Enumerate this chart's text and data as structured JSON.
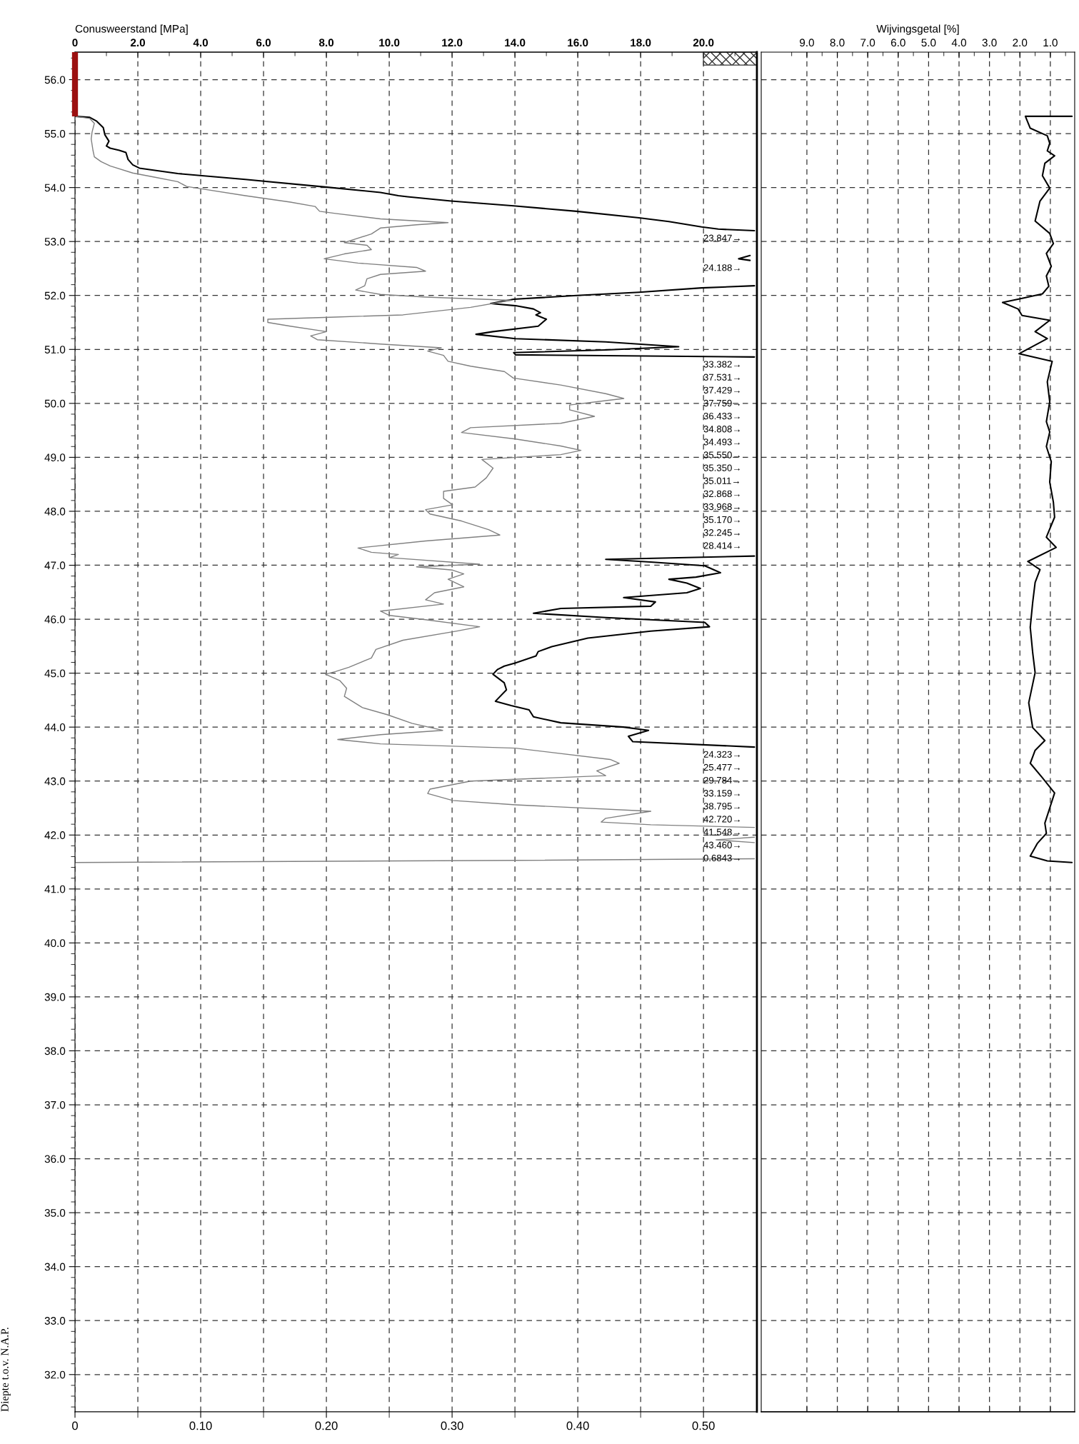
{
  "chart_data": [
    {
      "type": "line",
      "ylabel": "Diepte t.o.v. N.A.P.",
      "x2label": "Conusweerstand [MPa]",
      "xlim": [
        0,
        0.5425
      ],
      "xticks": [
        0,
        {
          "value": 0.05,
          "label": null
        },
        {
          "value": 0.1,
          "label": "0.10"
        },
        {
          "value": 0.15,
          "label": null
        },
        {
          "value": 0.2,
          "label": "0.20"
        },
        {
          "value": 0.25,
          "label": null
        },
        {
          "value": 0.3,
          "label": "0.30"
        },
        {
          "value": 0.35,
          "label": null
        },
        {
          "value": 0.4,
          "label": "0.40"
        },
        {
          "value": 0.45,
          "label": null
        },
        {
          "value": 0.5,
          "label": "0.50"
        }
      ],
      "x2lim": [
        0,
        21.7
      ],
      "x2ticks": [
        0,
        {
          "value": 1,
          "label": null
        },
        {
          "value": 2,
          "label": "2.0"
        },
        {
          "value": 3,
          "label": null
        },
        {
          "value": 4,
          "label": "4.0"
        },
        {
          "value": 5,
          "label": null
        },
        {
          "value": 6,
          "label": "6.0"
        },
        {
          "value": 7,
          "label": null
        },
        {
          "value": 8,
          "label": "8.0"
        },
        {
          "value": 9,
          "label": null
        },
        {
          "value": 10,
          "label": "10.0"
        },
        {
          "value": 11,
          "label": null
        },
        {
          "value": 12,
          "label": "12.0"
        },
        {
          "value": 13,
          "label": null
        },
        {
          "value": 14,
          "label": "14.0"
        },
        {
          "value": 15,
          "label": null
        },
        {
          "value": 16,
          "label": "16.0"
        },
        {
          "value": 17,
          "label": null
        },
        {
          "value": 18,
          "label": "18.0"
        },
        {
          "value": 19,
          "label": null
        },
        {
          "value": 20,
          "label": "20.0"
        },
        {
          "value": 21,
          "label": null
        }
      ],
      "ylim": [
        31.31,
        56.51
      ],
      "yticks": [
        {
          "value": 56,
          "label": "56.0"
        },
        {
          "value": 55,
          "label": "55.0"
        },
        {
          "value": 54,
          "label": "54.0"
        },
        {
          "value": 53,
          "label": "53.0"
        },
        {
          "value": 52,
          "label": "52.0"
        },
        {
          "value": 51,
          "label": "51.0"
        },
        {
          "value": 50,
          "label": "50.0"
        },
        {
          "value": 49,
          "label": "49.0"
        },
        {
          "value": 48,
          "label": "48.0"
        },
        {
          "value": 47,
          "label": "47.0"
        },
        {
          "value": 46,
          "label": "46.0"
        },
        {
          "value": 45,
          "label": "45.0"
        },
        {
          "value": 44,
          "label": "44.0"
        },
        {
          "value": 43,
          "label": "43.0"
        },
        {
          "value": 42,
          "label": "42.0"
        },
        {
          "value": 41,
          "label": "41.0"
        },
        {
          "value": 40,
          "label": "40.0"
        },
        {
          "value": 39,
          "label": "39.0"
        },
        {
          "value": 38,
          "label": "38.0"
        },
        {
          "value": 37,
          "label": "37.0"
        },
        {
          "value": 36,
          "label": "36.0"
        },
        {
          "value": 35,
          "label": "35.0"
        },
        {
          "value": 34,
          "label": "34.0"
        },
        {
          "value": 33,
          "label": "33.0"
        },
        {
          "value": 32,
          "label": "32.0"
        }
      ],
      "grid": true,
      "series": [
        {
          "color": "#9b1010",
          "x": [
            0,
            0
          ],
          "values": [
            55.32,
            56.51
          ]
        },
        {
          "color": "#000000",
          "axis": "x2",
          "x": [
            0,
            0.47,
            0.69,
            0.9,
            0.95,
            1.08,
            1.0,
            1.12,
            1.41,
            1.62,
            1.69,
            1.84,
            2.05,
            3.27,
            5.42,
            7.97,
            9.72,
            10.29,
            10.58,
            11.97,
            13.96,
            15.96,
            17.95,
            18.9,
            19.94,
            20.47,
            21.62,
            null,
            21.48,
            21.12,
            21.48,
            null,
            21.62,
            19.94,
            17.95,
            15.96,
            13.96,
            13.23,
            14.02,
            14.59,
            14.81,
            14.67,
            15.0,
            14.74,
            13.3,
            12.76,
            14.02,
            16.89,
            19.21,
            16.89,
            13.96,
            14.02,
            21.62,
            null,
            21.62,
            16.89,
            18.32,
            20.04,
            20.54,
            19.76,
            18.9,
            19.47,
            19.9,
            19.47,
            17.46,
            18.47,
            18.32,
            15.46,
            14.59,
            16.89,
            20.04,
            20.19,
            18.32,
            16.32,
            15.17,
            14.74,
            14.67,
            14.02,
            13.66,
            13.45,
            13.3,
            13.66,
            13.73,
            13.38,
            13.88,
            14.45,
            14.59,
            15.46,
            17.46,
            18.25,
            17.61,
            17.75,
            21.62
          ],
          "values": [
            55.32,
            55.3,
            55.23,
            55.11,
            54.98,
            54.86,
            54.77,
            54.73,
            54.69,
            54.65,
            54.52,
            54.42,
            54.36,
            54.26,
            54.15,
            54.01,
            53.91,
            53.85,
            53.83,
            53.75,
            53.66,
            53.56,
            53.44,
            53.37,
            53.27,
            53.23,
            53.2,
            null,
            52.74,
            52.68,
            52.65,
            null,
            52.18,
            52.14,
            52.06,
            52.0,
            51.93,
            51.85,
            51.81,
            51.75,
            51.68,
            51.64,
            51.56,
            51.43,
            51.33,
            51.28,
            51.2,
            51.14,
            51.05,
            50.99,
            50.94,
            50.9,
            50.86,
            null,
            47.17,
            47.11,
            47.06,
            46.99,
            46.86,
            46.78,
            46.74,
            46.67,
            46.57,
            46.49,
            46.4,
            46.32,
            46.24,
            46.2,
            46.11,
            46.03,
            45.94,
            45.86,
            45.78,
            45.65,
            45.49,
            45.4,
            45.32,
            45.19,
            45.13,
            45.07,
            44.98,
            44.82,
            44.69,
            44.48,
            44.4,
            44.32,
            44.19,
            44.08,
            44.0,
            43.94,
            43.83,
            43.73,
            43.63
          ]
        },
        {
          "color": "#808080",
          "x": [
            0,
            0.0118,
            0.0154,
            0.0136,
            0.0129,
            0.0143,
            0.0154,
            0.0208,
            0.028,
            0.0459,
            0.0638,
            0.0817,
            0.0889,
            0.0996,
            0.1355,
            0.1713,
            0.191,
            0.1946,
            0.2072,
            0.243,
            0.2968,
            0.2717,
            0.243,
            0.2358,
            0.2143,
            0.2323,
            0.2358,
            0.2143,
            0.1982,
            0.2251,
            0.2717,
            0.2789,
            0.243,
            0.2323,
            0.2305,
            0.2233,
            0.243,
            0.2789,
            0.347,
            0.3147,
            0.2609,
            0.2072,
            0.1534,
            0.1534,
            0.1713,
            0.2,
            0.1875,
            0.1928,
            0.243,
            0.2914,
            0.2806,
            0.2932,
            0.2968,
            0.3147,
            0.3416,
            0.3487,
            0.3864,
            0.4222,
            0.4366,
            0.4222,
            0.3935,
            0.3935,
            0.4133,
            0.3864,
            0.3147,
            0.3075,
            0.3505,
            0.3864,
            0.4025,
            0.3864,
            0.3237,
            0.3326,
            0.3272,
            0.3183,
            0.2932,
            0.2932,
            0.3004,
            0.2789,
            0.2824,
            0.3075,
            0.329,
            0.338,
            0.2789,
            0.2251,
            0.2358,
            0.2573,
            0.2502,
            0.3219,
            0.2717,
            0.3004,
            0.3093,
            0.2968,
            0.3093,
            0.286,
            0.2789,
            0.2932,
            0.243,
            0.2502,
            0.2789,
            0.3219,
            0.3039,
            0.2609,
            0.2394,
            0.2358,
            0.2179,
            0.2072,
            0.1993,
            0.2108,
            0.2161,
            0.2143,
            0.2287,
            0.2484,
            0.2681,
            0.2925,
            0.243,
            0.209,
            0.243,
            0.3505,
            0.4258,
            0.433,
            0.4151,
            0.4222,
            0.3147,
            0.2824,
            0.2806,
            0.3004,
            0.3505,
            0.4581,
            0.4222,
            0.4186,
            0.4581,
            0.5405,
            null,
            0.5405,
            0.51,
            0.5405,
            null,
            0.5405,
            0.3505,
            0
          ],
          "values": [
            55.32,
            55.28,
            55.19,
            55.03,
            54.9,
            54.69,
            54.57,
            54.48,
            54.4,
            54.27,
            54.19,
            54.11,
            54.02,
            53.98,
            53.85,
            53.73,
            53.65,
            53.56,
            53.52,
            53.42,
            53.35,
            53.31,
            53.25,
            53.14,
            52.98,
            52.93,
            52.85,
            52.77,
            52.68,
            52.6,
            52.52,
            52.45,
            52.39,
            52.31,
            52.18,
            52.1,
            52.02,
            51.97,
            51.91,
            51.78,
            51.64,
            51.6,
            51.56,
            51.5,
            51.43,
            51.33,
            51.25,
            51.18,
            51.1,
            51.03,
            50.97,
            50.89,
            50.78,
            50.69,
            50.59,
            50.47,
            50.34,
            50.18,
            50.09,
            50.05,
            49.97,
            49.88,
            49.76,
            49.63,
            49.55,
            49.46,
            49.34,
            49.21,
            49.13,
            49.05,
            48.96,
            48.8,
            48.62,
            48.45,
            48.37,
            48.24,
            48.12,
            48.03,
            47.95,
            47.82,
            47.66,
            47.56,
            47.45,
            47.32,
            47.24,
            47.2,
            47.14,
            47.02,
            46.97,
            46.91,
            46.84,
            46.74,
            46.6,
            46.49,
            46.36,
            46.28,
            46.15,
            46.07,
            45.99,
            45.86,
            45.78,
            45.61,
            45.44,
            45.28,
            45.11,
            45.03,
            44.98,
            44.86,
            44.72,
            44.57,
            44.36,
            44.23,
            44.07,
            43.94,
            43.86,
            43.77,
            43.69,
            43.61,
            43.4,
            43.33,
            43.19,
            43.1,
            43.0,
            42.85,
            42.77,
            42.64,
            42.56,
            42.44,
            42.31,
            42.24,
            42.19,
            42.14,
            null,
            41.96,
            41.91,
            41.86,
            null,
            41.56,
            41.53,
            41.49
          ]
        }
      ],
      "annotations": [
        "23.847→",
        "24.188→",
        "33.382→",
        "37.531→",
        "37.429→",
        "37.759→",
        "36.433→",
        "34.808→",
        "34.493→",
        "35.550→",
        "35.350→",
        "35.011→",
        "32.868→",
        "33.968→",
        "35.170→",
        "32.245→",
        "28.414→",
        "24.323→",
        "25.477→",
        "29.784→",
        "33.159→",
        "38.795→",
        "42.720→",
        "41.548→",
        "43.460→",
        "0.6843→"
      ]
    },
    {
      "type": "line",
      "xlabel": "Wijvingsgetal [%]",
      "xlim": [
        10.5,
        0.2
      ],
      "xticks": [
        {
          "value": 9.5,
          "label": null
        },
        {
          "value": 9,
          "label": "9.0"
        },
        {
          "value": 8.5,
          "label": null
        },
        {
          "value": 8,
          "label": "8.0"
        },
        {
          "value": 7.5,
          "label": null
        },
        {
          "value": 7,
          "label": "7.0"
        },
        {
          "value": 6.5,
          "label": null
        },
        {
          "value": 6,
          "label": "6.0"
        },
        {
          "value": 5.5,
          "label": null
        },
        {
          "value": 5,
          "label": "5.0"
        },
        {
          "value": 4.5,
          "label": null
        },
        {
          "value": 4,
          "label": "4.0"
        },
        {
          "value": 3.5,
          "label": null
        },
        {
          "value": 3,
          "label": "3.0"
        },
        {
          "value": 2.5,
          "label": null
        },
        {
          "value": 2,
          "label": "2.0"
        },
        {
          "value": 1.5,
          "label": null
        },
        {
          "value": 1,
          "label": "1.0"
        },
        {
          "value": 0.5,
          "label": null
        }
      ],
      "ylim": [
        31.31,
        56.51
      ],
      "yticks": [
        56,
        55,
        54,
        53,
        52,
        51,
        50,
        49,
        48,
        47,
        46,
        45,
        44,
        43,
        42,
        41,
        40,
        39,
        38,
        37,
        36,
        35,
        34,
        33,
        32
      ],
      "tick_labels": "x",
      "grid": true,
      "series": [
        {
          "color": "#000000",
          "x": [
            0.29,
            1.82,
            1.66,
            1.1,
            1.02,
            1.1,
            0.86,
            1.18,
            1.26,
            1.02,
            1.34,
            1.5,
            1.02,
            0.9,
            1.13,
            0.97,
            1.13,
            1.05,
            1.26,
            1.98,
            2.57,
            2.06,
            1.93,
            1.02,
            1.5,
            1.1,
            2.03,
            0.94,
            1.1,
            1.02,
            1.13,
            1.02,
            1.13,
            0.97,
            1.02,
            0.9,
            0.86,
            1.13,
            0.81,
            1.74,
            1.34,
            1.5,
            1.58,
            1.66,
            1.58,
            1.5,
            1.71,
            1.58,
            1.18,
            1.5,
            1.66,
            1.26,
            0.86,
            1.02,
            1.18,
            1.13,
            1.42,
            1.66,
            1.1,
            0.29
          ],
          "values": [
            55.32,
            55.32,
            55.1,
            54.96,
            54.82,
            54.68,
            54.59,
            54.45,
            54.22,
            53.99,
            53.75,
            53.38,
            53.15,
            52.96,
            52.78,
            52.54,
            52.36,
            52.17,
            52.03,
            51.94,
            51.87,
            51.75,
            51.63,
            51.54,
            51.33,
            51.2,
            50.92,
            50.78,
            50.4,
            50.03,
            49.66,
            49.47,
            49.2,
            48.92,
            48.54,
            48.17,
            47.89,
            47.52,
            47.33,
            47.07,
            46.92,
            46.68,
            46.31,
            45.85,
            45.38,
            45.01,
            44.45,
            43.99,
            43.75,
            43.57,
            43.33,
            43.06,
            42.78,
            42.5,
            42.22,
            42.03,
            41.85,
            41.61,
            41.52,
            41.49
          ]
        }
      ]
    }
  ]
}
